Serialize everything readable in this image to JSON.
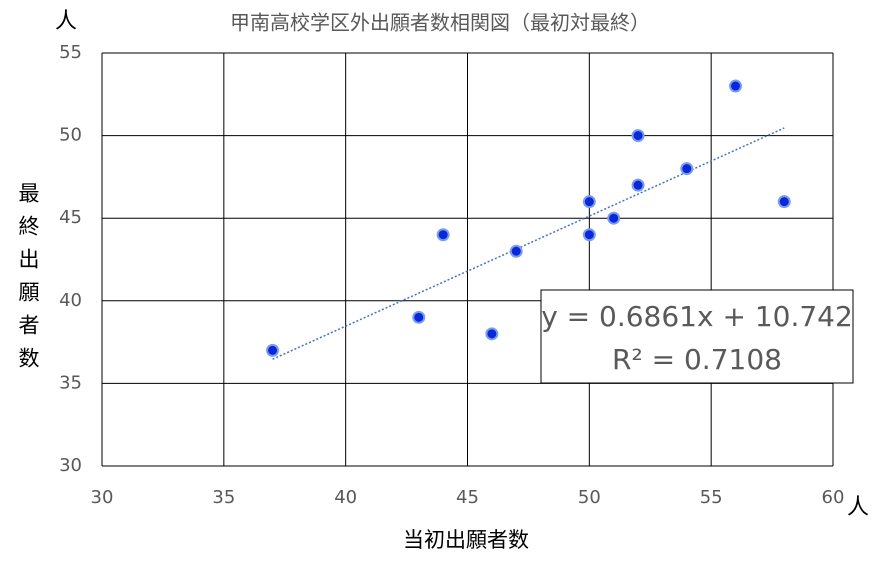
{
  "chart_data": {
    "type": "scatter",
    "title": "甲南高校学区外出願者数相関図（最初対最終）",
    "x_label": "当初出願者数",
    "y_label": "最終出願者数",
    "x_unit": "人",
    "y_unit": "人",
    "series": [
      {
        "name": "最終出願者数",
        "color": "#0a28d8",
        "x": [
          37,
          43,
          44,
          46,
          47,
          50,
          50,
          51,
          52,
          52,
          54,
          56,
          58
        ],
        "values": [
          37,
          39,
          44,
          38,
          43,
          46,
          44,
          45,
          50,
          47,
          48,
          53,
          46
        ]
      }
    ],
    "trendline": {
      "equation": "y = 0.6861x + 10.742",
      "r_squared": "R² = 0.7108"
    },
    "xlim": [
      30,
      60
    ],
    "xticks": [
      30,
      35,
      40,
      45,
      50,
      55,
      60
    ],
    "ylim": [
      30,
      55
    ],
    "yticks": [
      30,
      35,
      40,
      45,
      50,
      55
    ],
    "grid": true
  }
}
